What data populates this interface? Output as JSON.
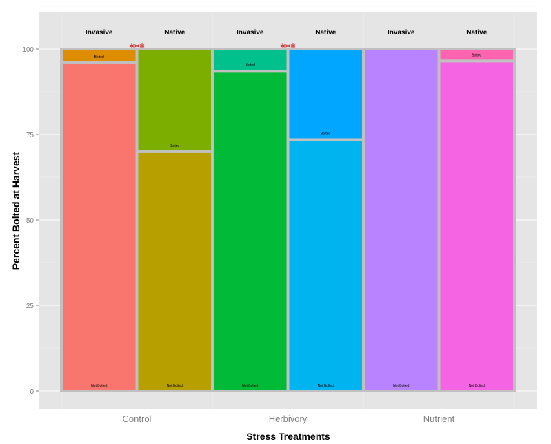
{
  "chart_data": {
    "type": "bar",
    "stacked": true,
    "variable_width": true,
    "xlabel": "Stress Treatments",
    "ylabel": "Percent Bolted at Harvest",
    "ylim": [
      0,
      100
    ],
    "yticks": [
      0,
      25,
      50,
      75,
      100
    ],
    "categories": [
      "Control",
      "Herbivory",
      "Nutrient"
    ],
    "grid": true,
    "bars": [
      {
        "treatment": "Control",
        "group": "Invasive",
        "not_bolted": 96,
        "bolted": 4,
        "color_not_bolted": "#f8766d",
        "color_bolted": "#de8c00"
      },
      {
        "treatment": "Control",
        "group": "Native",
        "not_bolted": 70,
        "bolted": 30,
        "color_not_bolted": "#b79f00",
        "color_bolted": "#7cae00"
      },
      {
        "treatment": "Herbivory",
        "group": "Invasive",
        "not_bolted": 93.5,
        "bolted": 6.5,
        "color_not_bolted": "#00ba38",
        "color_bolted": "#00c08b"
      },
      {
        "treatment": "Herbivory",
        "group": "Native",
        "not_bolted": 73.5,
        "bolted": 26.5,
        "color_not_bolted": "#00b4f0",
        "color_bolted": "#00a6ff"
      },
      {
        "treatment": "Nutrient",
        "group": "Invasive",
        "not_bolted": 100,
        "bolted": 0,
        "color_not_bolted": "#b983ff",
        "color_bolted": "#c77cff"
      },
      {
        "treatment": "Nutrient",
        "group": "Native",
        "not_bolted": 96.5,
        "bolted": 3.5,
        "color_not_bolted": "#f564e3",
        "color_bolted": "#ff64b0"
      }
    ],
    "segment_labels": {
      "bolted": "Bolted",
      "not_bolted": "Not Bolted"
    },
    "significance_marks": [
      {
        "between": "Control",
        "text": "***"
      },
      {
        "between": "Herbivory",
        "text": "***"
      }
    ]
  },
  "colors": {
    "panel_background": "#e5e5e5",
    "grid": "#ffffff",
    "bar_outline": "#c0c0c0",
    "star": "#cc0000"
  }
}
